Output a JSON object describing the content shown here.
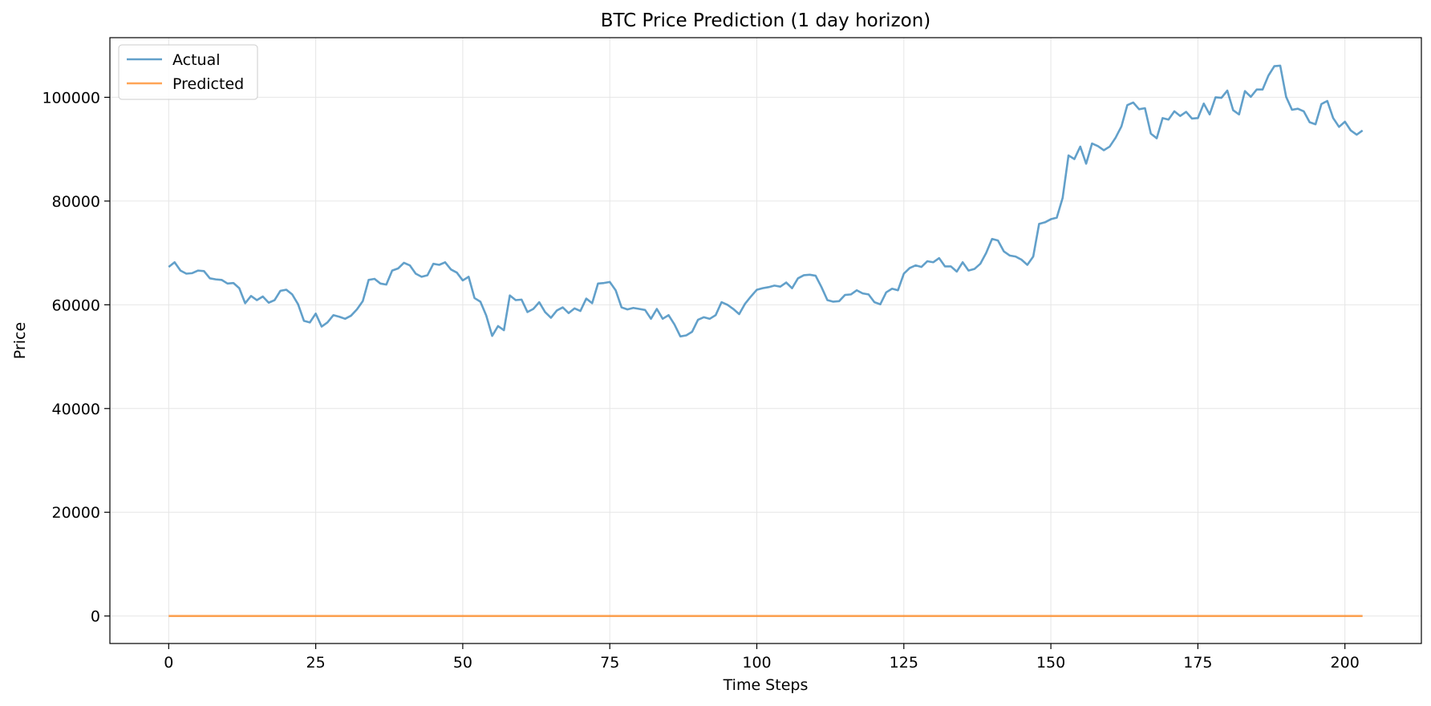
{
  "chart_data": {
    "type": "line",
    "title": "BTC Price Prediction (1 day horizon)",
    "xlabel": "Time Steps",
    "ylabel": "Price",
    "xlim": [
      -10,
      213
    ],
    "ylim": [
      -5300,
      111500
    ],
    "xticks": [
      0,
      25,
      50,
      75,
      100,
      125,
      150,
      175,
      200
    ],
    "yticks": [
      0,
      20000,
      40000,
      60000,
      80000,
      100000
    ],
    "grid": true,
    "legend_position": "top-left",
    "series": [
      {
        "name": "Actual",
        "color": "#1f77b4",
        "opacity": 0.7,
        "x_start": 0,
        "x_step": 1,
        "values": [
          67300,
          68200,
          66600,
          66000,
          66100,
          66600,
          66500,
          65100,
          64900,
          64800,
          64100,
          64200,
          63200,
          60300,
          61700,
          60900,
          61600,
          60400,
          60900,
          62700,
          62900,
          62000,
          60100,
          56900,
          56600,
          58300,
          55800,
          56600,
          58000,
          57700,
          57300,
          57900,
          59100,
          60700,
          64800,
          65000,
          64100,
          63900,
          66600,
          67000,
          68100,
          67600,
          66000,
          65400,
          65700,
          67900,
          67700,
          68200,
          66800,
          66200,
          64700,
          65400,
          61300,
          60600,
          57900,
          54000,
          55900,
          55100,
          61800,
          60900,
          61000,
          58600,
          59200,
          60500,
          58600,
          57500,
          58900,
          59500,
          58400,
          59300,
          58800,
          61200,
          60300,
          64100,
          64200,
          64400,
          62800,
          59500,
          59100,
          59400,
          59200,
          59000,
          57300,
          59200,
          57300,
          58000,
          56200,
          53900,
          54100,
          54800,
          57100,
          57600,
          57300,
          58000,
          60500,
          60000,
          59200,
          58200,
          60200,
          61600,
          62900,
          63200,
          63400,
          63700,
          63500,
          64300,
          63200,
          65100,
          65700,
          65800,
          65600,
          63400,
          60900,
          60600,
          60700,
          61900,
          62000,
          62800,
          62200,
          62000,
          60500,
          60100,
          62400,
          63100,
          62800,
          66000,
          67100,
          67600,
          67300,
          68400,
          68200,
          69000,
          67400,
          67400,
          66400,
          68200,
          66600,
          66900,
          67900,
          70000,
          72700,
          72400,
          70300,
          69500,
          69300,
          68700,
          67700,
          69300,
          75600,
          75900,
          76500,
          76800,
          80600,
          88800,
          88100,
          90500,
          87200,
          91100,
          90600,
          89800,
          90500,
          92200,
          94400,
          98500,
          99000,
          97700,
          97900,
          93000,
          92100,
          96000,
          95700,
          97300,
          96400,
          97200,
          95900,
          96000,
          98800,
          96700,
          100000,
          99900,
          101300,
          97500,
          96700,
          101200,
          100100,
          101500,
          101500,
          104200,
          106000,
          106100,
          100100,
          97600,
          97800,
          97300,
          95200,
          94800,
          98700,
          99300,
          96000,
          94300,
          95300,
          93600,
          92800,
          93600
        ]
      },
      {
        "name": "Predicted",
        "color": "#ff7f0e",
        "opacity": 0.7,
        "x_start": 0,
        "x_step": 1,
        "values_constant": 0,
        "count": 204
      }
    ]
  }
}
